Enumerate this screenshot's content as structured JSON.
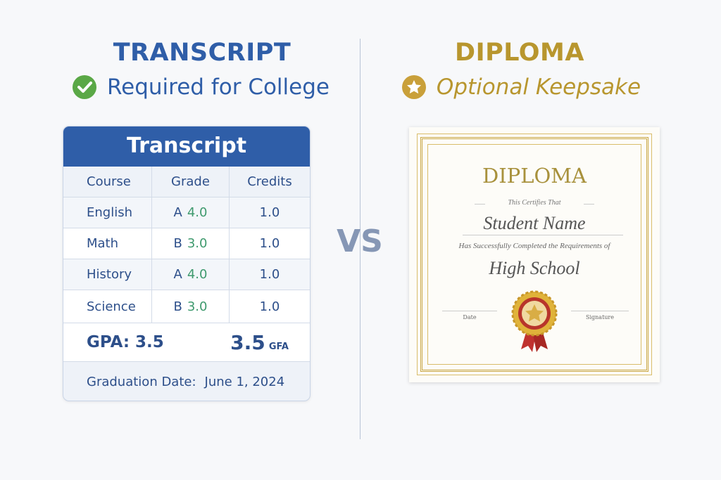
{
  "left": {
    "title": "TRANSCRIPT",
    "subtitle": "Required for College",
    "icon": "check-circle-icon",
    "title_color": "#2f5ea8",
    "icon_color": "#5aa846"
  },
  "vs": "VS",
  "right": {
    "title": "DIPLOMA",
    "subtitle": "Optional Keepsake",
    "icon": "star-circle-icon",
    "title_color": "#b8962e"
  },
  "transcript": {
    "header": "Transcript",
    "columns": [
      "Course",
      "Grade",
      "Credits"
    ],
    "rows": [
      {
        "course": "English",
        "grade": "A",
        "points": "4.0",
        "credits": "1.0"
      },
      {
        "course": "Math",
        "grade": "B",
        "points": "3.0",
        "credits": "1.0"
      },
      {
        "course": "History",
        "grade": "A",
        "points": "4.0",
        "credits": "1.0"
      },
      {
        "course": "Science",
        "grade": "B",
        "points": "3.0",
        "credits": "1.0"
      }
    ],
    "gpa_label": "GPA: 3.5",
    "gpa_value": "3.5",
    "gpa_suffix": "GFA",
    "graduation_label": "Graduation Date:",
    "graduation_date": "June 1, 2024"
  },
  "diploma": {
    "title": "DIPLOMA",
    "certifies": "This Certifies That",
    "name": "Student Name",
    "completed": "Has Successfully Completed the Requirements of",
    "school": "High School",
    "date_label": "Date",
    "signature_label": "Signature",
    "border_color": "#c9a642"
  }
}
